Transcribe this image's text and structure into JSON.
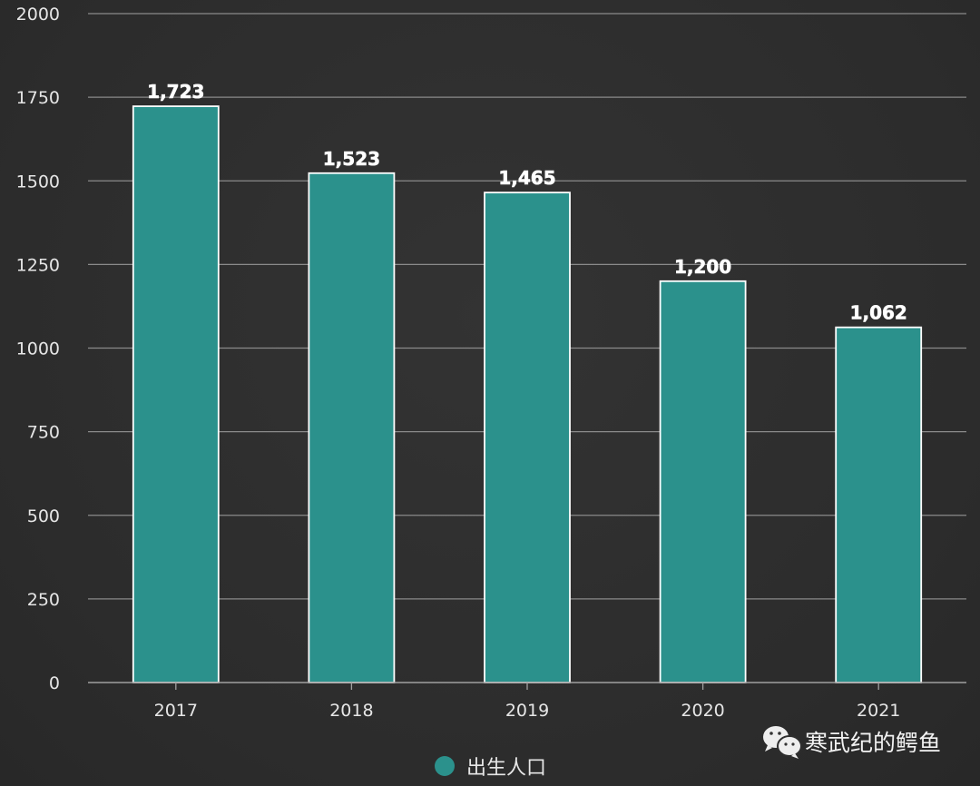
{
  "chart_data": {
    "type": "bar",
    "title": "",
    "xlabel": "",
    "ylabel": "",
    "categories": [
      "2017",
      "2018",
      "2019",
      "2020",
      "2021"
    ],
    "series": [
      {
        "name": "出生人口",
        "values": [
          1723,
          1523,
          1465,
          1200,
          1062
        ],
        "labels": [
          "1,723",
          "1,523",
          "1,465",
          "1,200",
          "1,062"
        ],
        "color": "#2b918c"
      }
    ],
    "ylim": [
      0,
      2000
    ],
    "yticks": [
      "0",
      "250",
      "500",
      "750",
      "1000",
      "1250",
      "1500",
      "1750",
      "2000"
    ],
    "grid": true,
    "legend_position": "bottom-left"
  },
  "watermark": {
    "text": "寒武纪的鳄鱼",
    "icon": "wechat-icon"
  },
  "colors": {
    "background": "#2e2e2e",
    "bar": "#2b918c",
    "bar_border": "#ffffff",
    "grid": "#8a8a8a",
    "text": "#e6e6e6"
  }
}
